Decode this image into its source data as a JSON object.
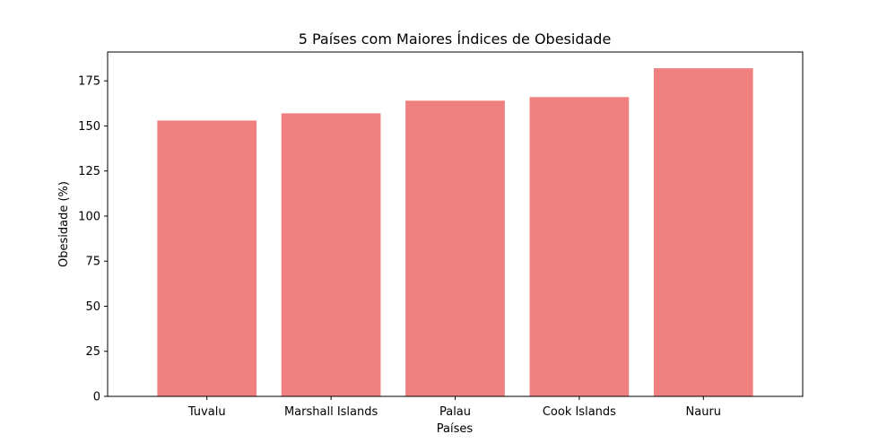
{
  "chart_data": {
    "type": "bar",
    "title": "5 Países com Maiores Índices de Obesidade",
    "xlabel": "Países",
    "ylabel": "Obesidade (%)",
    "categories": [
      "Tuvalu",
      "Marshall Islands",
      "Palau",
      "Cook Islands",
      "Nauru"
    ],
    "values": [
      153,
      157,
      164,
      166,
      182
    ],
    "ylim": [
      0,
      191
    ],
    "yticks": [
      0,
      25,
      50,
      75,
      100,
      125,
      150,
      175
    ],
    "ytick_labels": [
      "0",
      "25",
      "50",
      "75",
      "100",
      "125",
      "150",
      "175"
    ],
    "bar_color": "#f08080",
    "grid": false,
    "legend": "none"
  }
}
